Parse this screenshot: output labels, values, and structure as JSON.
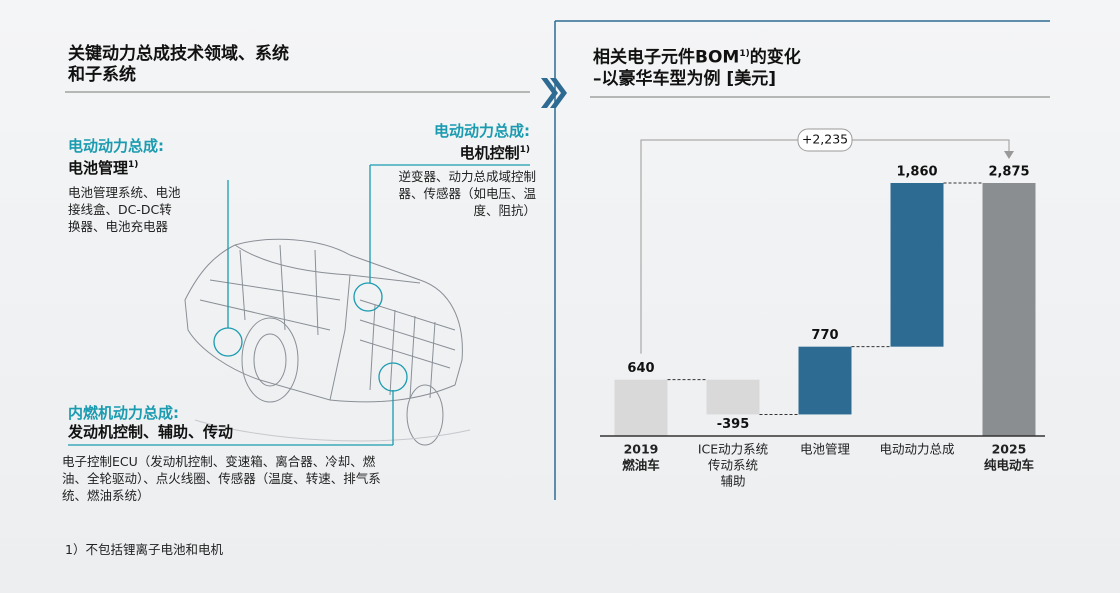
{
  "left": {
    "title": [
      "关键动力总成技术领域、系统",
      "和子系统"
    ],
    "callouts": [
      {
        "prefix": "电动动力总成:",
        "heading": "电池管理",
        "note": "1)",
        "description": "电池管理系统、电池接线盒、DC-DC转换器、电池充电器"
      },
      {
        "prefix": "电动动力总成:",
        "heading": "电机控制",
        "note": "1)",
        "description": "逆变器、动力总成域控制器、传感器（如电压、温度、阻抗）"
      },
      {
        "prefix": "内燃机动力总成:",
        "heading": "发动机控制、辅助、传动",
        "description": "电子控制ECU（发动机控制、变速箱、离合器、冷却、燃油、全轮驱动）、点火线圈、传感器（温度、转速、排气系统、燃油系统）"
      }
    ]
  },
  "footnote": "1）不包括锂离子电池和电机",
  "chart_data": {
    "type": "waterfall",
    "title": {
      "before": "相关电子元件BOM",
      "note": "1)",
      "after": "的变化",
      "subtitle": "–以豪华车型为例 [美元]"
    },
    "categories": [
      [
        "2019",
        "燃油车"
      ],
      [
        "ICE动力系统",
        "传动系统",
        "辅助"
      ],
      [
        "电池管理"
      ],
      [
        "电动动力总成"
      ],
      [
        "2025",
        "纯电动车"
      ]
    ],
    "measure": [
      "total",
      "relative",
      "relative",
      "relative",
      "total"
    ],
    "values": [
      640,
      -395,
      770,
      1860,
      2875
    ],
    "value_labels": [
      "640",
      "-395",
      "770",
      "1,860",
      "2,875"
    ],
    "colors": [
      "#d9d9d9",
      "#d9d9d9",
      "#2e6b93",
      "#2e6b93",
      "#8b8e91"
    ],
    "annotation": {
      "value": 2235,
      "label": "+2,235"
    }
  }
}
